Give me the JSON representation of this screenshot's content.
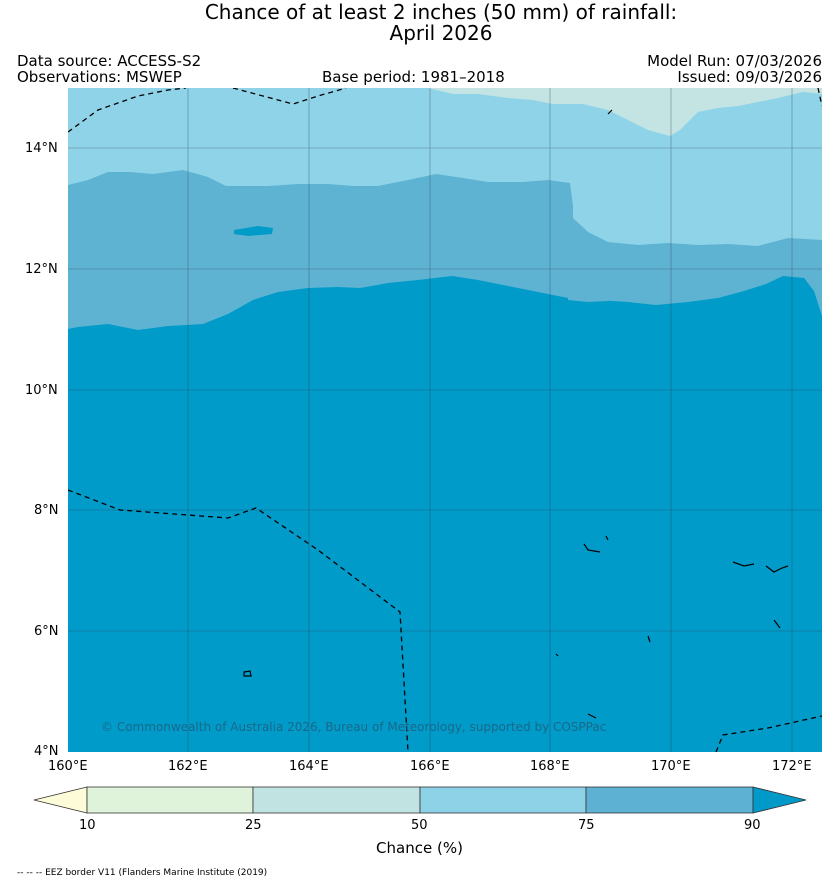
{
  "title": {
    "line1": "Chance of at least 2 inches (50  mm) of rainfall:",
    "line2": "April 2026"
  },
  "meta": {
    "data_source": "Data source: ACCESS-S2",
    "observations": "Observations: MSWEP",
    "base_period": "Base period: 1981–2018",
    "model_run": "Model Run: 07/03/2026",
    "issued": "Issued: 09/03/2026"
  },
  "map": {
    "lat_ticks": [
      "14°N",
      "12°N",
      "10°N",
      "8°N",
      "6°N",
      "4°N"
    ],
    "lon_ticks": [
      "160°E",
      "162°E",
      "164°E",
      "166°E",
      "168°E",
      "170°E",
      "172°E"
    ],
    "lat_range_deg": [
      4,
      15
    ],
    "lon_range_deg": [
      160,
      172.5
    ],
    "copyright": "© Commonwealth of Australia 2026, Bureau of Meteorology, supported by COSPPac",
    "category_colors": {
      "50-75": "#8fd3e8",
      "75-90": "#5eb3d3",
      "90+": "#009bc9",
      "25-50": "#c3e4e3"
    }
  },
  "colorbar": {
    "label": "Chance (%)",
    "ticks": [
      "10",
      "25",
      "50",
      "75",
      "90"
    ],
    "colors": [
      "#fdfbd8",
      "#dff3da",
      "#c1e4e3",
      "#8ed2e8",
      "#5db2d3",
      "#0099c8"
    ]
  },
  "footer": {
    "eez_note": "-- -- -- EEZ border V11 (Flanders Marine Institute (2019)"
  }
}
